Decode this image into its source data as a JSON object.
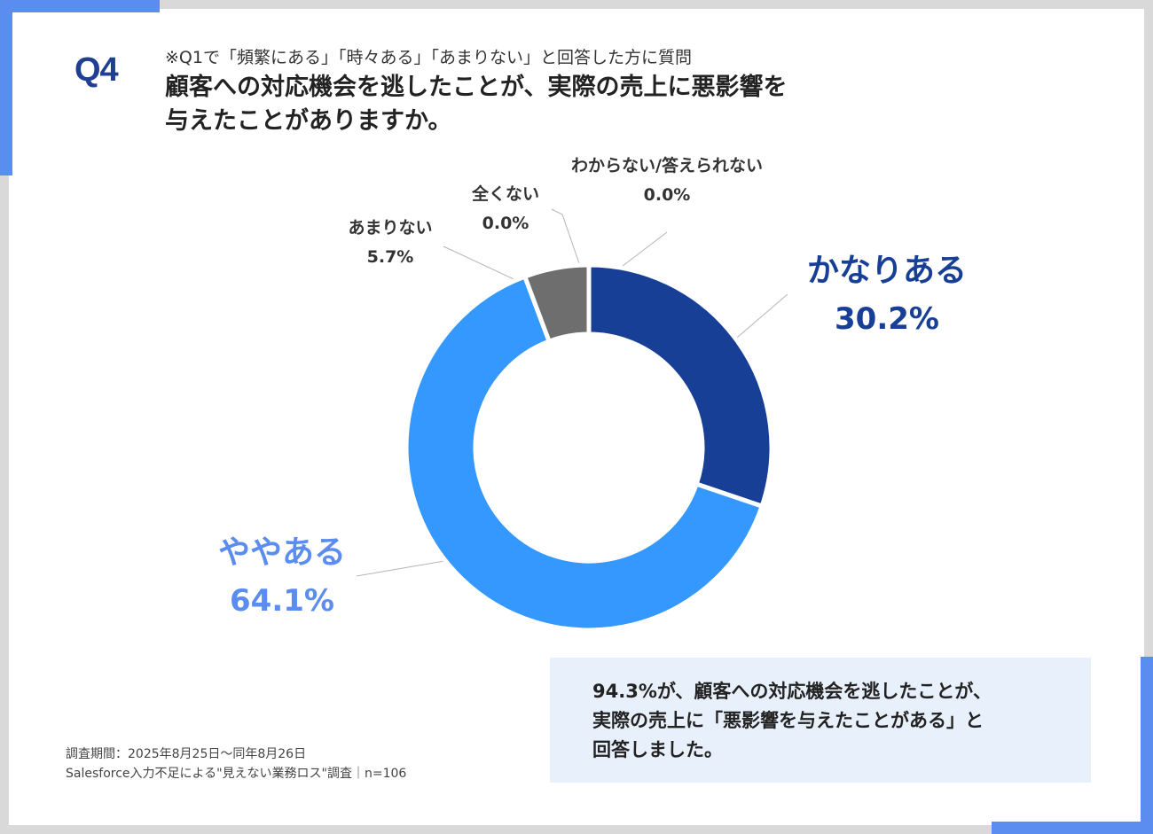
{
  "header": {
    "q_label": "Q4",
    "subtitle": "※Q1で「頻繁にある」「時々ある」「あまりない」と回答した方に質問",
    "title_line1": "顧客への対応機会を逃したことが、実際の売上に悪影響を",
    "title_line2": "与えたことがありますか。"
  },
  "colors": {
    "accent": "#5b8cf0",
    "dark_blue": "#173f96",
    "light_blue": "#3598fe",
    "gray": "#6e6e6e",
    "callout_bg": "#e8f0fb"
  },
  "chart_data": {
    "type": "pie",
    "donut": true,
    "start": "12 o'clock, clockwise",
    "slices": [
      {
        "label": "かなりある",
        "value": 30.2,
        "value_label": "30.2%",
        "color": "#173f96"
      },
      {
        "label": "ややある",
        "value": 64.1,
        "value_label": "64.1%",
        "color": "#3598fe"
      },
      {
        "label": "あまりない",
        "value": 5.7,
        "value_label": "5.7%",
        "color": "#6e6e6e"
      },
      {
        "label": "全くない",
        "value": 0.0,
        "value_label": "0.0%",
        "color": "#aaaaaa"
      },
      {
        "label": "わからない/答えられない",
        "value": 0.0,
        "value_label": "0.0%",
        "color": "#cccccc"
      }
    ]
  },
  "callout": {
    "line1": "94.3%が、顧客への対応機会を逃したことが、",
    "line2": "実際の売上に「悪影響を与えたことがある」と",
    "line3": "回答しました。"
  },
  "footnote": {
    "line1": "調査期間：2025年8月25日～同年8月26日",
    "line2": "Salesforce入力不足による\"見えない業務ロス\"調査｜n=106"
  }
}
